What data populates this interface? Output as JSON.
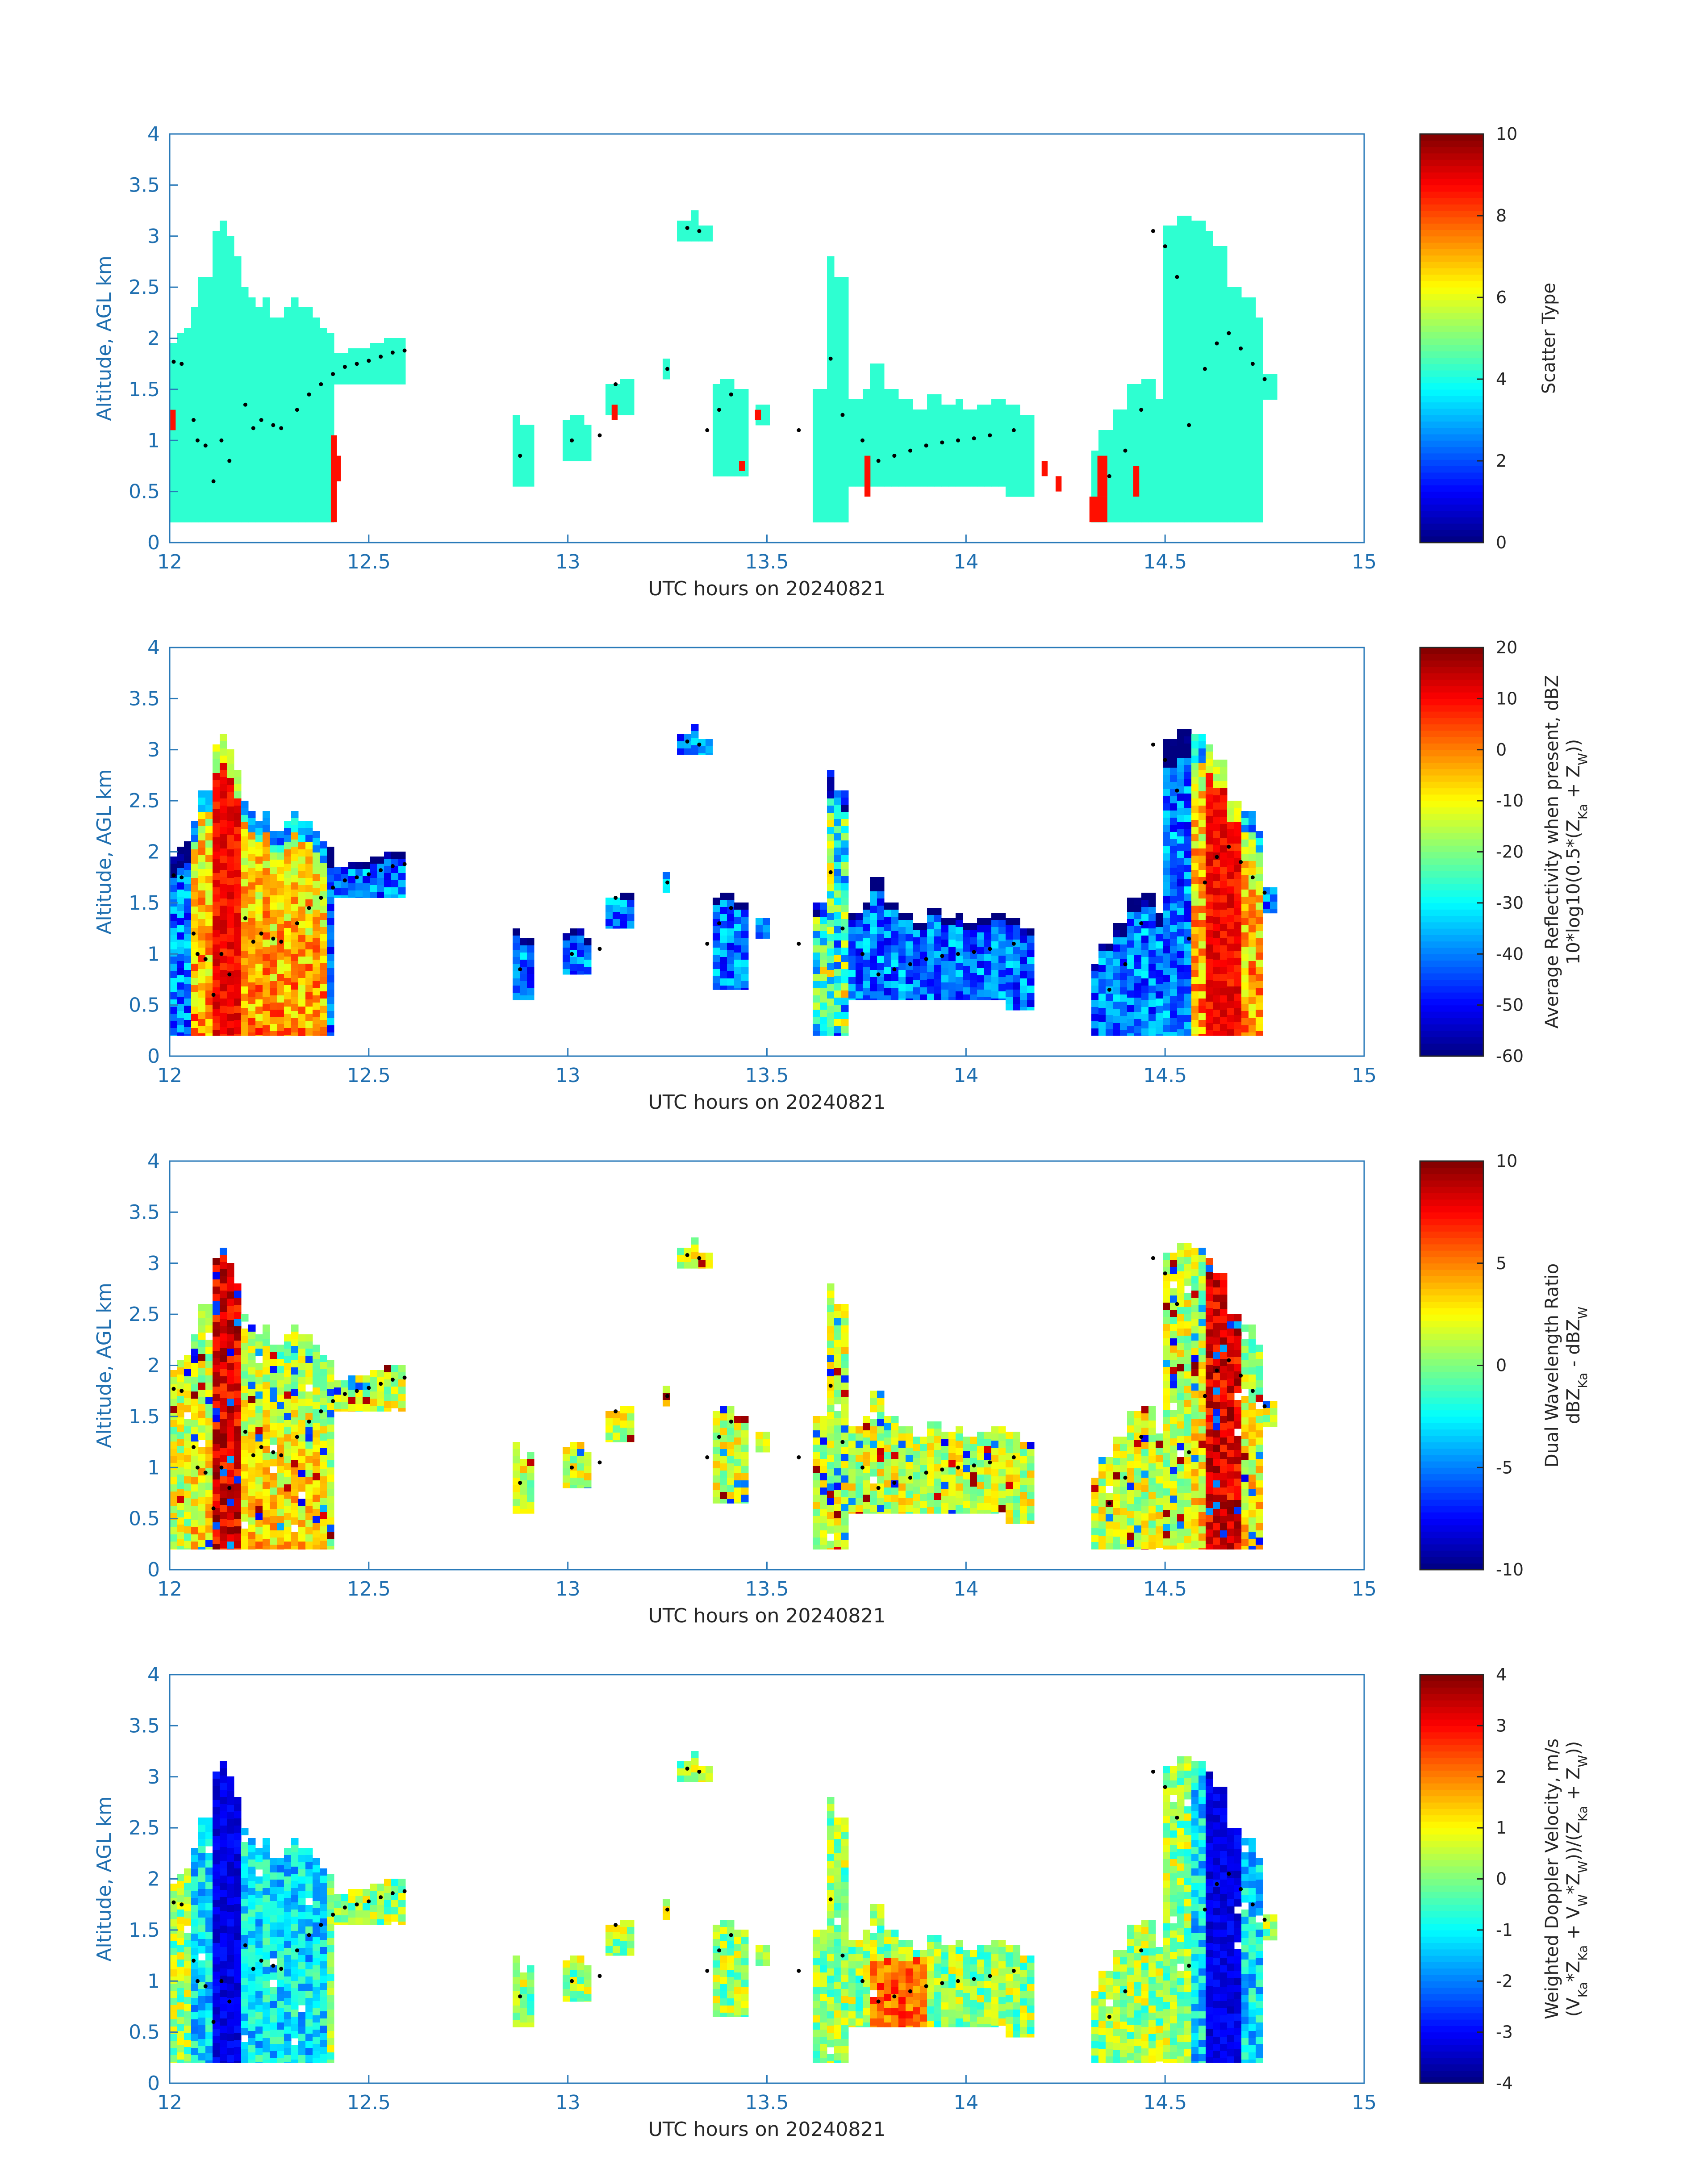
{
  "chart_data": [
    {
      "type": "heatmap",
      "xlabel": "UTC hours on 20240821",
      "ylabel": "Altitude, AGL km",
      "xlim": [
        12,
        15
      ],
      "ylim": [
        0,
        4
      ],
      "x_ticks": [
        "12",
        "12.5",
        "13",
        "13.5",
        "14",
        "14.5",
        "15"
      ],
      "y_ticks": [
        "0",
        "0.5",
        "1",
        "1.5",
        "2",
        "2.5",
        "3",
        "3.5",
        "4"
      ],
      "colorbar": {
        "label_lines": [
          "Scatter Type"
        ],
        "range": [
          0,
          10
        ],
        "ticks": [
          "0",
          "2",
          "4",
          "6",
          "8",
          "10"
        ]
      },
      "field": "scatter",
      "dominant_value": 4.2
    },
    {
      "type": "heatmap",
      "xlabel": "UTC hours on 20240821",
      "ylabel": "Altitude, AGL km",
      "xlim": [
        12,
        15
      ],
      "ylim": [
        0,
        4
      ],
      "x_ticks": [
        "12",
        "12.5",
        "13",
        "13.5",
        "14",
        "14.5",
        "15"
      ],
      "y_ticks": [
        "0",
        "0.5",
        "1",
        "1.5",
        "2",
        "2.5",
        "3",
        "3.5",
        "4"
      ],
      "colorbar": {
        "label_lines": [
          "Average Reflectivity when present, dBZ",
          "10*log10(0.5*(Z_Ka + Z_W))"
        ],
        "range": [
          -60,
          20
        ],
        "ticks": [
          "-60",
          "-50",
          "-40",
          "-30",
          "-20",
          "-10",
          "0",
          "10",
          "20"
        ]
      },
      "field": "reflectivity"
    },
    {
      "type": "heatmap",
      "xlabel": "UTC hours on 20240821",
      "ylabel": "Altitude, AGL km",
      "xlim": [
        12,
        15
      ],
      "ylim": [
        0,
        4
      ],
      "x_ticks": [
        "12",
        "12.5",
        "13",
        "13.5",
        "14",
        "14.5",
        "15"
      ],
      "y_ticks": [
        "0",
        "0.5",
        "1",
        "1.5",
        "2",
        "2.5",
        "3",
        "3.5",
        "4"
      ],
      "colorbar": {
        "label_lines": [
          "Dual Wavelength Ratio",
          "dBZ_Ka - dBZ_W"
        ],
        "range": [
          -10,
          10
        ],
        "ticks": [
          "-10",
          "-5",
          "0",
          "5",
          "10"
        ]
      },
      "field": "dwr"
    },
    {
      "type": "heatmap",
      "xlabel": "UTC hours on 20240821",
      "ylabel": "Altitude, AGL km",
      "xlim": [
        12,
        15
      ],
      "ylim": [
        0,
        4
      ],
      "x_ticks": [
        "12",
        "12.5",
        "13",
        "13.5",
        "14",
        "14.5",
        "15"
      ],
      "y_ticks": [
        "0",
        "0.5",
        "1",
        "1.5",
        "2",
        "2.5",
        "3",
        "3.5",
        "4"
      ],
      "colorbar": {
        "label_lines": [
          "Weighted Doppler Velocity, m/s",
          "(V_Ka*Z_Ka + V_W*Z_W))/(Z_Ka + Z_W))"
        ],
        "range": [
          -4,
          4
        ],
        "ticks": [
          "-4",
          "-3",
          "-2",
          "-1",
          "0",
          "1",
          "2",
          "3",
          "4"
        ]
      },
      "field": "velocity"
    }
  ],
  "cloud_columns": [
    {
      "t0": 12.0,
      "t1": 12.42,
      "bottom": 0.2,
      "tops": [
        1.95,
        2.05,
        2.1,
        2.3,
        2.6,
        3.05,
        3.15,
        3.0,
        2.8,
        2.5,
        2.4,
        2.3,
        2.4,
        2.2,
        2.3,
        2.4,
        2.3,
        2.3,
        2.2,
        2.1,
        2.05
      ]
    },
    {
      "t0": 12.42,
      "t1": 12.6,
      "bottom": 1.55,
      "tops": [
        1.85,
        1.9,
        1.9,
        1.95,
        2.0,
        2.0
      ]
    },
    {
      "t0": 12.86,
      "t1": 12.91,
      "bottom": 0.55,
      "tops": [
        1.25,
        1.15
      ]
    },
    {
      "t0": 12.98,
      "t1": 13.06,
      "bottom": 0.8,
      "tops": [
        1.2,
        1.25,
        1.15
      ]
    },
    {
      "t0": 13.09,
      "t1": 13.16,
      "bottom": 1.25,
      "tops": [
        1.55,
        1.6
      ]
    },
    {
      "t0": 13.23,
      "t1": 13.26,
      "bottom": 1.6,
      "tops": [
        1.8
      ]
    },
    {
      "t0": 13.27,
      "t1": 13.37,
      "bottom": 2.95,
      "tops": [
        3.15,
        3.25,
        3.1
      ]
    },
    {
      "t0": 13.27,
      "t1": 13.45,
      "bottom": 0.65,
      "tops": [
        1.45,
        1.5,
        1.55,
        1.6,
        1.5
      ]
    },
    {
      "t0": 13.47,
      "t1": 13.5,
      "bottom": 1.15,
      "tops": [
        1.35
      ]
    },
    {
      "t0": 13.62,
      "t1": 13.7,
      "bottom": 0.2,
      "tops": [
        1.5,
        2.8,
        2.6
      ]
    },
    {
      "t0": 13.7,
      "t1": 14.1,
      "bottom": 0.55,
      "tops": [
        1.4,
        1.5,
        1.75,
        1.5,
        1.4,
        1.3,
        1.45,
        1.35,
        1.4,
        1.3,
        1.35,
        1.4
      ]
    },
    {
      "t0": 14.1,
      "t1": 14.17,
      "bottom": 0.45,
      "tops": [
        1.35,
        1.25
      ]
    },
    {
      "t0": 14.31,
      "t1": 14.5,
      "bottom": 0.2,
      "tops": [
        0.9,
        1.1,
        1.3,
        1.55,
        1.6,
        1.4
      ]
    },
    {
      "t0": 14.5,
      "t1": 14.75,
      "bottom": 0.2,
      "tops": [
        3.1,
        3.2,
        3.15,
        3.05,
        2.9,
        2.5,
        2.4,
        2.2
      ]
    },
    {
      "t0": 14.75,
      "t1": 14.79,
      "bottom": 1.4,
      "tops": [
        1.65
      ]
    }
  ],
  "melting_dots": [
    {
      "t": 12.01,
      "h": 1.77
    },
    {
      "t": 12.03,
      "h": 1.75
    },
    {
      "t": 12.06,
      "h": 1.2
    },
    {
      "t": 12.07,
      "h": 1.0
    },
    {
      "t": 12.09,
      "h": 0.95
    },
    {
      "t": 12.11,
      "h": 0.6
    },
    {
      "t": 12.13,
      "h": 1.0
    },
    {
      "t": 12.15,
      "h": 0.8
    },
    {
      "t": 12.19,
      "h": 1.35
    },
    {
      "t": 12.21,
      "h": 1.12
    },
    {
      "t": 12.23,
      "h": 1.2
    },
    {
      "t": 12.26,
      "h": 1.15
    },
    {
      "t": 12.28,
      "h": 1.12
    },
    {
      "t": 12.32,
      "h": 1.3
    },
    {
      "t": 12.35,
      "h": 1.45
    },
    {
      "t": 12.38,
      "h": 1.55
    },
    {
      "t": 12.41,
      "h": 1.65
    },
    {
      "t": 12.44,
      "h": 1.72
    },
    {
      "t": 12.47,
      "h": 1.75
    },
    {
      "t": 12.5,
      "h": 1.78
    },
    {
      "t": 12.53,
      "h": 1.82
    },
    {
      "t": 12.56,
      "h": 1.86
    },
    {
      "t": 12.59,
      "h": 1.88
    },
    {
      "t": 12.88,
      "h": 0.85
    },
    {
      "t": 13.01,
      "h": 1.0
    },
    {
      "t": 13.08,
      "h": 1.05
    },
    {
      "t": 13.12,
      "h": 1.55
    },
    {
      "t": 13.25,
      "h": 1.7
    },
    {
      "t": 13.3,
      "h": 3.08
    },
    {
      "t": 13.33,
      "h": 3.05
    },
    {
      "t": 13.35,
      "h": 1.1
    },
    {
      "t": 13.38,
      "h": 1.3
    },
    {
      "t": 13.41,
      "h": 1.45
    },
    {
      "t": 13.58,
      "h": 1.1
    },
    {
      "t": 13.66,
      "h": 1.8
    },
    {
      "t": 13.69,
      "h": 1.25
    },
    {
      "t": 13.74,
      "h": 1.0
    },
    {
      "t": 13.78,
      "h": 0.8
    },
    {
      "t": 13.82,
      "h": 0.85
    },
    {
      "t": 13.86,
      "h": 0.9
    },
    {
      "t": 13.9,
      "h": 0.95
    },
    {
      "t": 13.94,
      "h": 0.98
    },
    {
      "t": 13.98,
      "h": 1.0
    },
    {
      "t": 14.02,
      "h": 1.02
    },
    {
      "t": 14.06,
      "h": 1.05
    },
    {
      "t": 14.12,
      "h": 1.1
    },
    {
      "t": 14.36,
      "h": 0.65
    },
    {
      "t": 14.4,
      "h": 0.9
    },
    {
      "t": 14.44,
      "h": 1.3
    },
    {
      "t": 14.47,
      "h": 3.05
    },
    {
      "t": 14.5,
      "h": 2.9
    },
    {
      "t": 14.53,
      "h": 2.6
    },
    {
      "t": 14.56,
      "h": 1.15
    },
    {
      "t": 14.6,
      "h": 1.7
    },
    {
      "t": 14.63,
      "h": 1.95
    },
    {
      "t": 14.66,
      "h": 2.05
    },
    {
      "t": 14.69,
      "h": 1.9
    },
    {
      "t": 14.72,
      "h": 1.75
    },
    {
      "t": 14.75,
      "h": 1.6
    }
  ],
  "scatter_patches": [
    {
      "t0": 12.0,
      "t1": 12.015,
      "h0": 1.1,
      "h1": 1.3
    },
    {
      "t0": 12.405,
      "t1": 12.42,
      "h0": 0.2,
      "h1": 1.05
    },
    {
      "t0": 12.42,
      "t1": 12.43,
      "h0": 0.6,
      "h1": 0.85
    },
    {
      "t0": 13.11,
      "t1": 13.125,
      "h0": 1.2,
      "h1": 1.35
    },
    {
      "t0": 13.43,
      "t1": 13.445,
      "h0": 0.7,
      "h1": 0.8
    },
    {
      "t0": 13.47,
      "t1": 13.485,
      "h0": 1.2,
      "h1": 1.3
    },
    {
      "t0": 13.745,
      "t1": 13.76,
      "h0": 0.45,
      "h1": 0.85
    },
    {
      "t0": 14.19,
      "t1": 14.205,
      "h0": 0.65,
      "h1": 0.8
    },
    {
      "t0": 14.225,
      "t1": 14.24,
      "h0": 0.5,
      "h1": 0.65
    },
    {
      "t0": 14.31,
      "t1": 14.355,
      "h0": 0.2,
      "h1": 0.45
    },
    {
      "t0": 14.33,
      "t1": 14.355,
      "h0": 0.45,
      "h1": 0.85
    },
    {
      "t0": 14.42,
      "t1": 14.435,
      "h0": 0.45,
      "h1": 0.75
    }
  ]
}
